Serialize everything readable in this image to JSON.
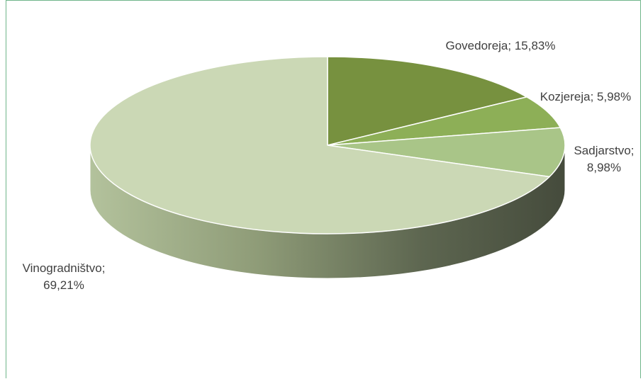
{
  "chart_data": {
    "type": "pie",
    "style": "3d",
    "categories": [
      "Govedoreja",
      "Kozjereja",
      "Sadjarstvo",
      "Vinogradništvo"
    ],
    "values": [
      15.83,
      5.98,
      8.98,
      69.21
    ],
    "unit": "%",
    "colors": [
      "#77913f",
      "#8daf57",
      "#a9c588",
      "#cbd8b5"
    ],
    "labels": [
      {
        "lines": [
          "Govedoreja; 15,83%"
        ]
      },
      {
        "lines": [
          "Kozjereja; 5,98%"
        ]
      },
      {
        "lines": [
          "Sadjarstvo;",
          "8,98%"
        ]
      },
      {
        "lines": [
          "Vinogradništvo;",
          "69,21%"
        ]
      }
    ]
  }
}
